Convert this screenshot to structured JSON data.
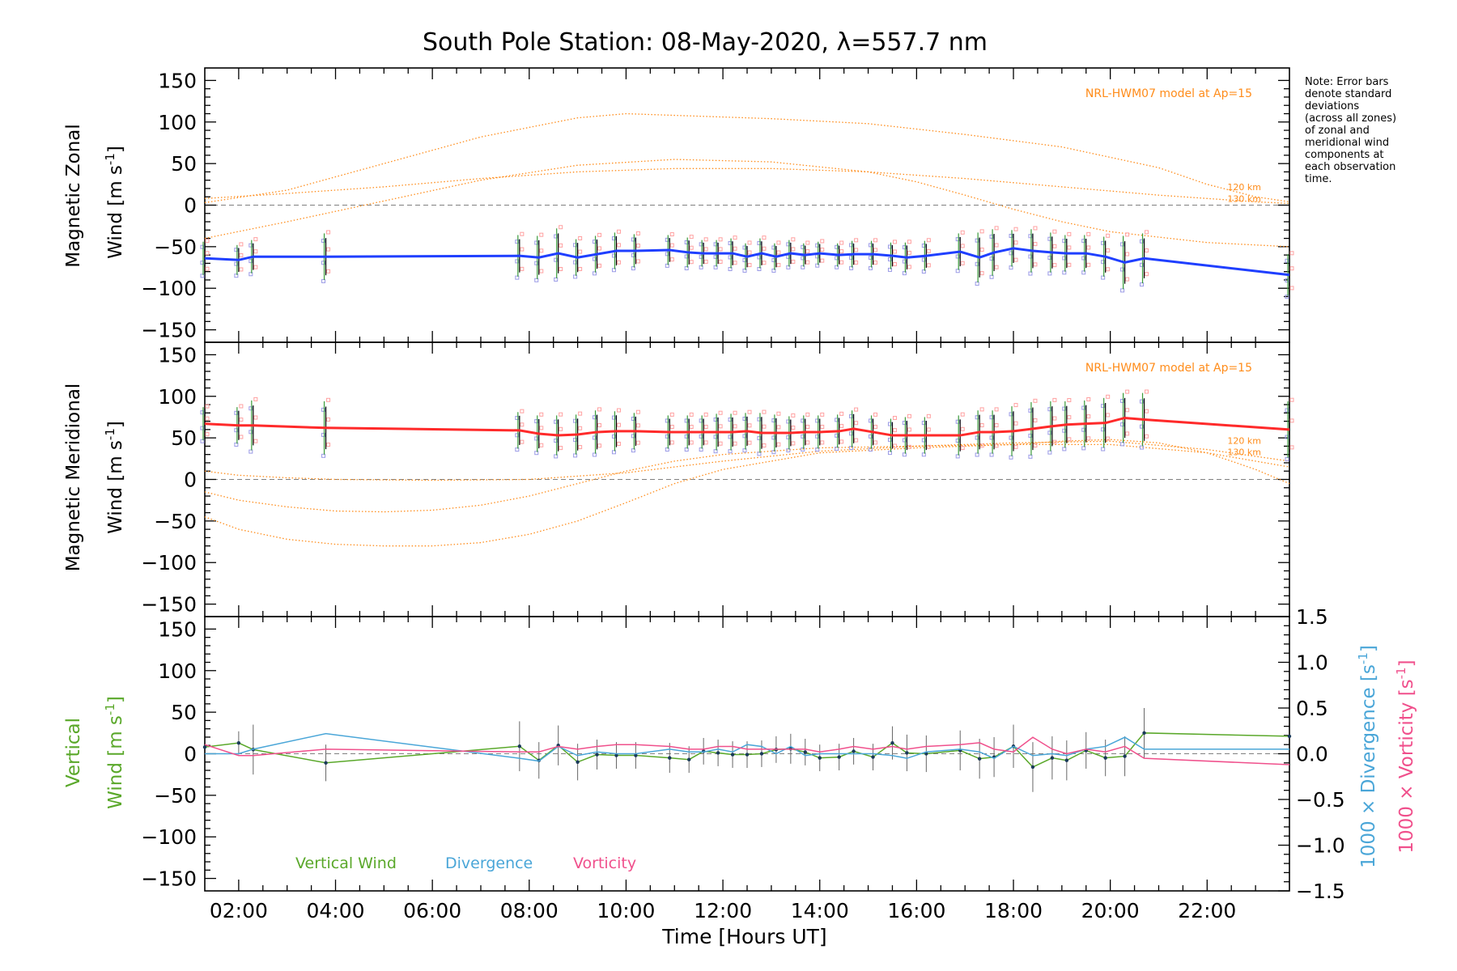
{
  "title": "South Pole Station: 08-May-2020, λ=557.7 nm",
  "note_lines": [
    "Note: Error bars",
    "denote standard",
    "deviations",
    "(across all zones)",
    "of zonal and",
    "meridional wind",
    "components at",
    "each observation",
    "time."
  ],
  "colors": {
    "zonal": "#1f3fff",
    "meridional": "#ff2a2a",
    "model": "#ff8c1a",
    "vertical": "#5aa82a",
    "divergence": "#4aa6d8",
    "vorticity": "#f0508c",
    "samples_blue": "#9a9ae6",
    "samples_red": "#ffa0a0",
    "zero_line": "#808080"
  },
  "chart_data": [
    {
      "type": "line",
      "panel": "zonal",
      "ylabel_line1": "Magnetic Zonal",
      "ylabel_line2": "Wind [m s",
      "ylabel_sup": "-1",
      "ylabel_close": "]",
      "xlim": [
        1.3,
        23.7
      ],
      "ylim": [
        -165,
        165
      ],
      "yticks": [
        150,
        100,
        50,
        0,
        -50,
        -100,
        -150
      ],
      "model_label": "NRL-HWM07 model at Ap=15",
      "model_alt_labels": [
        "120 km",
        "130 km"
      ],
      "x": [
        1.3,
        2.0,
        2.3,
        3.8,
        7.8,
        8.2,
        8.6,
        9.0,
        9.4,
        9.8,
        10.2,
        10.9,
        11.3,
        11.6,
        11.9,
        12.2,
        12.5,
        12.8,
        13.1,
        13.4,
        13.7,
        14.0,
        14.4,
        14.7,
        15.1,
        15.5,
        15.8,
        16.2,
        16.9,
        17.3,
        17.6,
        18.0,
        18.4,
        18.8,
        19.1,
        19.5,
        19.9,
        20.3,
        20.7,
        23.7
      ],
      "values": [
        -64,
        -66,
        -62,
        -62,
        -61,
        -63,
        -58,
        -63,
        -59,
        -55,
        -55,
        -54,
        -57,
        -58,
        -58,
        -58,
        -62,
        -58,
        -62,
        -58,
        -60,
        -58,
        -60,
        -59,
        -59,
        -61,
        -63,
        -61,
        -56,
        -63,
        -57,
        -52,
        -55,
        -57,
        -58,
        -58,
        -62,
        -69,
        -64,
        -84
      ],
      "errors": [
        20,
        18,
        20,
        28,
        25,
        26,
        30,
        22,
        22,
        22,
        20,
        18,
        18,
        16,
        16,
        18,
        16,
        18,
        16,
        16,
        14,
        14,
        14,
        16,
        16,
        16,
        18,
        18,
        22,
        30,
        28,
        22,
        26,
        24,
        22,
        22,
        24,
        32,
        30,
        25
      ],
      "model_curves": [
        {
          "x": [
            1.3,
            3,
            5,
            7,
            9,
            10,
            11,
            13,
            15,
            17,
            19,
            21,
            22,
            23,
            23.7
          ],
          "y": [
            3,
            18,
            50,
            82,
            105,
            110,
            108,
            104,
            98,
            85,
            70,
            45,
            25,
            10,
            4
          ]
        },
        {
          "x": [
            1.3,
            3,
            5,
            7,
            9,
            11,
            13,
            15,
            16,
            17,
            18,
            19,
            20,
            22,
            23.7
          ],
          "y": [
            -40,
            -20,
            5,
            30,
            48,
            55,
            52,
            40,
            28,
            12,
            -5,
            -20,
            -32,
            -45,
            -50
          ]
        },
        {
          "x": [
            1.3,
            3,
            5,
            7,
            9,
            11,
            13,
            15,
            17,
            19,
            21,
            23,
            23.7
          ],
          "y": [
            8,
            14,
            22,
            32,
            40,
            44,
            44,
            40,
            32,
            22,
            12,
            4,
            2
          ]
        }
      ]
    },
    {
      "type": "line",
      "panel": "meridional",
      "ylabel_line1": "Magnetic Meridional",
      "ylabel_line2": "Wind [m s",
      "ylabel_sup": "-1",
      "ylabel_close": "]",
      "xlim": [
        1.3,
        23.7
      ],
      "ylim": [
        -165,
        165
      ],
      "yticks": [
        150,
        100,
        50,
        0,
        -50,
        -100,
        -150
      ],
      "model_label": "NRL-HWM07 model at Ap=15",
      "model_alt_labels": [
        "120 km",
        "130 km"
      ],
      "x": [
        1.3,
        2.0,
        2.3,
        3.8,
        7.8,
        8.2,
        8.6,
        9.0,
        9.4,
        9.8,
        10.2,
        10.9,
        11.3,
        11.6,
        11.9,
        12.2,
        12.5,
        12.8,
        13.1,
        13.4,
        13.7,
        14.0,
        14.4,
        14.7,
        15.1,
        15.5,
        15.8,
        16.2,
        16.9,
        17.3,
        17.6,
        18.0,
        18.4,
        18.8,
        19.1,
        19.5,
        19.9,
        20.3,
        20.7,
        23.7
      ],
      "values": [
        67,
        65,
        65,
        62,
        59,
        55,
        53,
        54,
        57,
        58,
        58,
        57,
        57,
        57,
        57,
        57,
        58,
        56,
        56,
        56,
        57,
        57,
        58,
        61,
        57,
        53,
        53,
        53,
        53,
        57,
        57,
        58,
        61,
        64,
        66,
        67,
        68,
        74,
        72,
        60
      ],
      "errors": [
        20,
        22,
        30,
        32,
        22,
        22,
        24,
        24,
        26,
        24,
        22,
        20,
        20,
        20,
        22,
        22,
        22,
        24,
        22,
        20,
        20,
        20,
        20,
        22,
        20,
        20,
        22,
        22,
        24,
        26,
        26,
        30,
        32,
        30,
        28,
        28,
        30,
        30,
        32,
        34
      ],
      "model_curves": [
        {
          "x": [
            1.3,
            2,
            3,
            4,
            5,
            6,
            7,
            8,
            9,
            10,
            11,
            12,
            14,
            16,
            18,
            19,
            20,
            21,
            22,
            23,
            23.7
          ],
          "y": [
            -45,
            -60,
            -72,
            -78,
            -80,
            -80,
            -76,
            -66,
            -50,
            -28,
            -5,
            12,
            32,
            38,
            42,
            46,
            48,
            44,
            32,
            12,
            -5
          ]
        },
        {
          "x": [
            1.3,
            2,
            3,
            4,
            5,
            6,
            7,
            8,
            9,
            10,
            11,
            12,
            14,
            16,
            18,
            20,
            22,
            23.7
          ],
          "y": [
            -15,
            -25,
            -33,
            -38,
            -39,
            -37,
            -31,
            -20,
            -5,
            10,
            22,
            30,
            38,
            40,
            42,
            42,
            32,
            15
          ]
        },
        {
          "x": [
            1.3,
            2,
            3,
            4,
            6,
            8,
            10,
            12,
            14,
            16,
            18,
            20,
            22,
            23.7
          ],
          "y": [
            10,
            5,
            2,
            0,
            -1,
            0,
            8,
            22,
            34,
            40,
            44,
            46,
            36,
            22
          ]
        }
      ]
    },
    {
      "type": "line",
      "panel": "vertical",
      "ylabel_line1": "Vertical",
      "ylabel_line2": "Wind [m s",
      "ylabel_sup": "-1",
      "ylabel_close": "]",
      "y2label_div": "1000 × Divergence [s",
      "y2label_vort": "1000 × Vorticity [s",
      "y2label_sup": "-1",
      "y2label_close": "]",
      "xlabel": "Time [Hours UT]",
      "xlim": [
        1.3,
        23.7
      ],
      "xticks": [
        "02:00",
        "04:00",
        "06:00",
        "08:00",
        "10:00",
        "12:00",
        "14:00",
        "16:00",
        "18:00",
        "20:00",
        "22:00"
      ],
      "xtick_values": [
        2,
        4,
        6,
        8,
        10,
        12,
        14,
        16,
        18,
        20,
        22
      ],
      "ylim": [
        -165,
        165
      ],
      "yticks": [
        150,
        100,
        50,
        0,
        -50,
        -100,
        -150
      ],
      "y2lim": [
        -1.5,
        1.5
      ],
      "y2ticks": [
        "1.5",
        "1.0",
        "0.5",
        "0.0",
        "−0.5",
        "−1.0",
        "−1.5"
      ],
      "y2tick_values": [
        1.5,
        1.0,
        0.5,
        0.0,
        -0.5,
        -1.0,
        -1.5
      ],
      "legend": [
        "Vertical Wind",
        "Divergence",
        "Vorticity"
      ],
      "series": [
        {
          "name": "Vertical Wind",
          "x": [
            1.3,
            2.0,
            2.3,
            3.8,
            7.8,
            8.2,
            8.6,
            9.0,
            9.4,
            9.8,
            10.2,
            10.9,
            11.3,
            11.6,
            11.9,
            12.2,
            12.5,
            12.8,
            13.1,
            13.4,
            13.7,
            14.0,
            14.4,
            14.7,
            15.1,
            15.5,
            15.8,
            16.2,
            16.9,
            17.3,
            17.6,
            18.0,
            18.4,
            18.8,
            19.1,
            19.5,
            19.9,
            20.3,
            20.7,
            23.7
          ],
          "values": [
            8,
            13,
            5,
            -11,
            9,
            -8,
            10,
            -10,
            -1,
            -2,
            -2,
            -5,
            -7,
            3,
            1,
            -1,
            -1,
            0,
            5,
            6,
            2,
            -5,
            -4,
            3,
            -4,
            13,
            1,
            0,
            4,
            -6,
            -4,
            9,
            -16,
            -5,
            -8,
            4,
            -5,
            -3,
            25,
            21
          ],
          "errors": [
            0,
            14,
            30,
            22,
            30,
            22,
            24,
            22,
            18,
            16,
            16,
            18,
            16,
            16,
            16,
            16,
            16,
            16,
            16,
            18,
            16,
            16,
            16,
            16,
            16,
            20,
            22,
            22,
            24,
            24,
            24,
            26,
            30,
            26,
            24,
            22,
            22,
            24,
            30,
            0
          ]
        },
        {
          "name": "Divergence",
          "x": [
            1.3,
            2.0,
            2.3,
            3.8,
            7.8,
            8.2,
            8.6,
            9.0,
            9.4,
            9.8,
            10.2,
            10.9,
            11.3,
            11.6,
            11.9,
            12.2,
            12.5,
            12.8,
            13.1,
            13.4,
            13.7,
            14.0,
            14.4,
            14.7,
            15.1,
            15.5,
            15.8,
            16.2,
            16.9,
            17.3,
            17.6,
            18.0,
            18.4,
            18.8,
            19.1,
            19.5,
            19.9,
            20.3,
            20.7,
            23.7
          ],
          "values": [
            0.0,
            0.0,
            0.05,
            0.22,
            -0.05,
            -0.08,
            0.08,
            -0.02,
            0.02,
            0.0,
            0.0,
            0.05,
            0.02,
            0.02,
            0.05,
            0.02,
            0.1,
            0.08,
            0.0,
            0.08,
            -0.02,
            0.0,
            0.0,
            0.0,
            0.0,
            -0.02,
            -0.05,
            0.02,
            0.05,
            0.02,
            -0.05,
            0.08,
            -0.02,
            0.0,
            -0.02,
            0.05,
            0.08,
            0.18,
            0.05,
            0.05
          ]
        },
        {
          "name": "Vorticity",
          "x": [
            1.3,
            2.0,
            2.3,
            3.8,
            7.8,
            8.2,
            8.6,
            9.0,
            9.4,
            9.8,
            10.2,
            10.9,
            11.3,
            11.6,
            11.9,
            12.2,
            12.5,
            12.8,
            13.1,
            13.4,
            13.7,
            14.0,
            14.4,
            14.7,
            15.1,
            15.5,
            15.8,
            16.2,
            16.9,
            17.3,
            17.6,
            18.0,
            18.4,
            18.8,
            19.1,
            19.5,
            19.9,
            20.3,
            20.7,
            23.7
          ],
          "values": [
            0.1,
            -0.02,
            -0.02,
            0.05,
            0.02,
            0.02,
            0.08,
            0.05,
            0.08,
            0.1,
            0.1,
            0.08,
            0.05,
            0.05,
            0.08,
            0.08,
            0.05,
            0.05,
            0.05,
            0.05,
            0.05,
            0.02,
            0.05,
            0.08,
            0.05,
            0.08,
            0.05,
            0.08,
            0.1,
            0.12,
            0.05,
            0.02,
            0.18,
            0.05,
            0.0,
            0.05,
            0.02,
            0.08,
            -0.05,
            -0.12
          ]
        }
      ]
    }
  ]
}
